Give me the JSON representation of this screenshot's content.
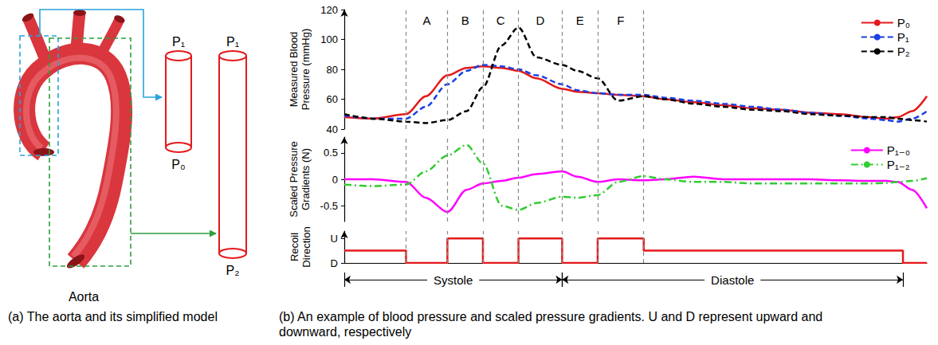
{
  "panel_a": {
    "caption": "(a) The aorta and its simplified model",
    "labels": {
      "aorta": "Aorta",
      "small_top": "P₁",
      "small_bottom": "P₀",
      "large_top": "P₁",
      "large_bottom": "P₂"
    }
  },
  "panel_b": {
    "caption": "(b) An example of blood pressure and scaled pressure gradients. U and D represent upward and downward, respectively",
    "regions": [
      {
        "label": "A",
        "start": 10.6,
        "end": 17.7
      },
      {
        "label": "B",
        "start": 17.7,
        "end": 23.8
      },
      {
        "label": "C",
        "start": 23.8,
        "end": 29.9
      },
      {
        "label": "D",
        "start": 29.9,
        "end": 37.4
      },
      {
        "label": "E",
        "start": 37.4,
        "end": 43.5
      },
      {
        "label": "F",
        "start": 43.5,
        "end": 51.4
      }
    ],
    "phases": [
      {
        "label": "Systole",
        "start": 0,
        "end": 37.4
      },
      {
        "label": "Diastole",
        "start": 37.4,
        "end": 95.9
      }
    ]
  },
  "chart_data": [
    {
      "type": "line",
      "ylabel": "Measured Blood\nPressure (mmHg)",
      "x": [
        0,
        5,
        10.6,
        14,
        17.7,
        21,
        23.8,
        27,
        29.9,
        33,
        37.4,
        40,
        43.5,
        47,
        51.4,
        55,
        60,
        65,
        70,
        75,
        80,
        85,
        90,
        93,
        95,
        97.5,
        100
      ],
      "xlim": [
        0,
        100
      ],
      "ylim": [
        40,
        120
      ],
      "yticks": [
        40,
        60,
        80,
        100,
        120
      ],
      "grid": false,
      "tick_labels": "y",
      "legend": "upper right",
      "series": [
        {
          "name": "P₀",
          "color": "#e41a1c",
          "line_style": "solid",
          "values": [
            48,
            47,
            50,
            62,
            76,
            81,
            82,
            81,
            79,
            74,
            67,
            65,
            64,
            63,
            62,
            60,
            58,
            56,
            54,
            53,
            51,
            50,
            48,
            47,
            48,
            52,
            62
          ]
        },
        {
          "name": "P₁",
          "color": "#1a3fe6",
          "line_style": "dashed",
          "values": [
            49,
            47,
            47,
            55,
            70,
            79,
            83,
            82,
            80,
            76,
            70,
            66,
            64,
            63,
            63,
            61,
            59,
            57,
            55,
            53,
            51,
            49,
            47,
            46,
            45,
            47,
            52
          ]
        },
        {
          "name": "P₂",
          "color": "#000000",
          "line_style": "dashed",
          "values": [
            50,
            47,
            45,
            44,
            46,
            52,
            68,
            96,
            108,
            88,
            83,
            79,
            74,
            59,
            62,
            60,
            57,
            55,
            53,
            52,
            50,
            49,
            48,
            48,
            47,
            46,
            45
          ]
        }
      ]
    },
    {
      "type": "line",
      "ylabel": "Scaled Pressure\nGradients (N)",
      "x": [
        0,
        5,
        10.6,
        14,
        17.7,
        21,
        23.8,
        27,
        29.9,
        33,
        37.4,
        40,
        43.5,
        47,
        51.4,
        55,
        60,
        65,
        70,
        75,
        80,
        85,
        90,
        93,
        95,
        97.5,
        100
      ],
      "xlim": [
        0,
        100
      ],
      "ylim": [
        -0.8,
        0.8
      ],
      "yticks": [
        -0.5,
        0,
        0.5
      ],
      "grid": false,
      "tick_labels": "y",
      "legend": "upper right",
      "series": [
        {
          "name": "P₁₋₀",
          "color": "#ff00ff",
          "line_style": "solid",
          "values": [
            0,
            0,
            -0.05,
            -0.35,
            -0.62,
            -0.2,
            -0.08,
            -0.03,
            0.03,
            0.1,
            0.15,
            0.05,
            -0.05,
            0,
            -0.02,
            0,
            0.05,
            0,
            0,
            0,
            0,
            -0.02,
            -0.03,
            -0.03,
            -0.05,
            -0.2,
            -0.55
          ]
        },
        {
          "name": "P₁₋₂",
          "color": "#33cc33",
          "line_style": "dashdot",
          "values": [
            -0.1,
            -0.13,
            -0.1,
            0.15,
            0.45,
            0.65,
            0.3,
            -0.5,
            -0.58,
            -0.45,
            -0.33,
            -0.35,
            -0.3,
            -0.05,
            0.06,
            0,
            -0.05,
            -0.05,
            -0.08,
            -0.08,
            -0.08,
            -0.08,
            -0.08,
            -0.07,
            -0.05,
            -0.03,
            0.02
          ]
        }
      ]
    },
    {
      "type": "step",
      "ylabel": "Recoil\nDirection",
      "x": [
        0,
        10.6,
        17.7,
        23.8,
        29.9,
        37.4,
        43.5,
        51.4,
        95.9,
        100
      ],
      "xlim": [
        0,
        100
      ],
      "ylim": [
        0,
        1.3
      ],
      "yticks": [
        {
          "value": 0,
          "label": "D"
        },
        {
          "value": 1,
          "label": "U"
        }
      ],
      "grid": false,
      "tick_labels": "y",
      "series": [
        {
          "color": "#e41a1c",
          "line_style": "solid",
          "values": [
            0.5,
            0,
            1,
            0,
            1,
            0,
            1,
            0.5,
            0,
            0
          ]
        }
      ]
    }
  ]
}
